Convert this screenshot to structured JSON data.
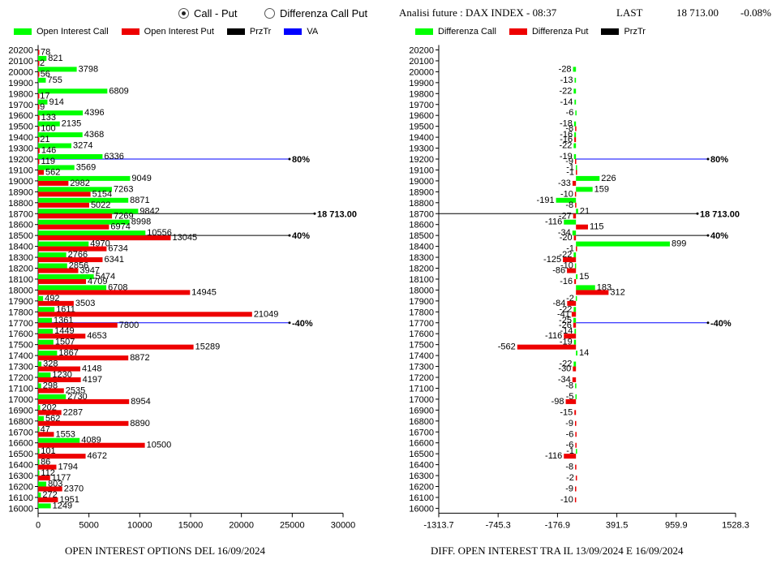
{
  "controls": {
    "call_put_label": "Call - Put",
    "diff_label": "Differenza Call Put",
    "selected": "call_put"
  },
  "header": {
    "title": "Analisi future : DAX INDEX - 08:37",
    "last_label": "LAST",
    "last_value": "18 713.00",
    "change": "-0.08%"
  },
  "colors": {
    "call": "#00ff00",
    "put": "#ee0000",
    "prztr": "#000000",
    "va": "#0000ff"
  },
  "legend_left": [
    {
      "label": "Open Interest Call",
      "color": "#00ff00"
    },
    {
      "label": "Open Interest Put",
      "color": "#ee0000"
    },
    {
      "label": "PrzTr",
      "color": "#000000"
    },
    {
      "label": "VA",
      "color": "#0000ff"
    }
  ],
  "legend_right": [
    {
      "label": "Differenza Call",
      "color": "#00ff00"
    },
    {
      "label": "Differenza Put",
      "color": "#ee0000"
    },
    {
      "label": "PrzTr",
      "color": "#000000"
    }
  ],
  "footer_left": "OPEN INTEREST OPTIONS DEL 16/09/2024",
  "footer_right": "DIFF. OPEN INTEREST TRA IL 13/09/2024 E 16/09/2024",
  "chart_data": [
    {
      "type": "bar",
      "orientation": "horizontal",
      "xticks": [
        0,
        5000,
        10000,
        15000,
        20000,
        25000,
        30000
      ],
      "xlim": [
        0,
        30000
      ],
      "strikes": [
        20200,
        20100,
        20000,
        19900,
        19800,
        19700,
        19600,
        19500,
        19400,
        19300,
        19200,
        19100,
        19000,
        18900,
        18800,
        18700,
        18600,
        18500,
        18400,
        18300,
        18200,
        18100,
        18000,
        17900,
        17800,
        17700,
        17600,
        17500,
        17400,
        17300,
        17200,
        17100,
        17000,
        16900,
        16800,
        16700,
        16600,
        16500,
        16400,
        16300,
        16200,
        16100,
        16000
      ],
      "series": [
        {
          "name": "Open Interest Call",
          "values": [
            null,
            821,
            3798,
            755,
            6809,
            914,
            4396,
            2135,
            4368,
            3274,
            6336,
            3569,
            9049,
            7263,
            8871,
            9842,
            8998,
            10556,
            4970,
            2766,
            2856,
            5474,
            6708,
            492,
            1611,
            1361,
            1449,
            1507,
            1867,
            328,
            1230,
            298,
            2730,
            202,
            562,
            47,
            4089,
            101,
            86,
            112,
            803,
            272,
            1249
          ]
        },
        {
          "name": "Open Interest Put",
          "values": [
            78,
            2,
            56,
            null,
            17,
            9,
            133,
            100,
            21,
            146,
            119,
            562,
            2982,
            5154,
            5022,
            7269,
            6974,
            13045,
            6734,
            6341,
            3947,
            4709,
            14945,
            3503,
            21049,
            7800,
            4653,
            15289,
            8872,
            4148,
            4197,
            2535,
            8954,
            2287,
            8890,
            1553,
            10500,
            4672,
            1794,
            1177,
            2370,
            1951,
            null
          ]
        }
      ],
      "annotations": [
        {
          "text": "80%",
          "strike": 19200
        },
        {
          "text": "18 713.00",
          "strike": 18700
        },
        {
          "text": "40%",
          "strike": 18500
        },
        {
          "text": "-40%",
          "strike": 17700
        }
      ]
    },
    {
      "type": "bar",
      "orientation": "horizontal",
      "xticks": [
        "-1313.7",
        "-745.3",
        "-176.9",
        "391.5",
        "959.9",
        "1528.3"
      ],
      "xlim": [
        -1313.7,
        1528.3
      ],
      "strikes": [
        20200,
        20100,
        20000,
        19900,
        19800,
        19700,
        19600,
        19500,
        19400,
        19300,
        19200,
        19100,
        19000,
        18900,
        18800,
        18700,
        18600,
        18500,
        18400,
        18300,
        18200,
        18100,
        18000,
        17900,
        17800,
        17700,
        17600,
        17500,
        17400,
        17300,
        17200,
        17100,
        17000,
        16900,
        16800,
        16700,
        16600,
        16500,
        16400,
        16300,
        16200,
        16100,
        16000
      ],
      "series": [
        {
          "name": "Differenza Call",
          "values": [
            null,
            null,
            -28,
            -13,
            -22,
            -14,
            -6,
            -18,
            -16,
            -22,
            -19,
            -1,
            226,
            159,
            -191,
            21,
            -116,
            -34,
            899,
            -22,
            -10,
            15,
            183,
            -2,
            -22,
            -25,
            -14,
            -19,
            14,
            -22,
            null,
            -8,
            -5,
            null,
            null,
            null,
            null,
            -1,
            null,
            null,
            null,
            null,
            null
          ]
        },
        {
          "name": "Differenza Put",
          "values": [
            null,
            null,
            null,
            null,
            null,
            null,
            null,
            -8,
            -16,
            null,
            -9,
            -1,
            -33,
            -10,
            -8,
            -27,
            115,
            -20,
            -1,
            -125,
            -86,
            -16,
            312,
            -84,
            -41,
            -26,
            -116,
            -562,
            null,
            -30,
            -34,
            null,
            -98,
            -15,
            -9,
            -6,
            -6,
            -116,
            -8,
            -2,
            -9,
            -10,
            null
          ]
        }
      ],
      "annotations": [
        {
          "text": "80%",
          "strike": 19200
        },
        {
          "text": "18 713.00",
          "strike": 18700
        },
        {
          "text": "40%",
          "strike": 18500
        },
        {
          "text": "-40%",
          "strike": 17700
        }
      ]
    }
  ]
}
